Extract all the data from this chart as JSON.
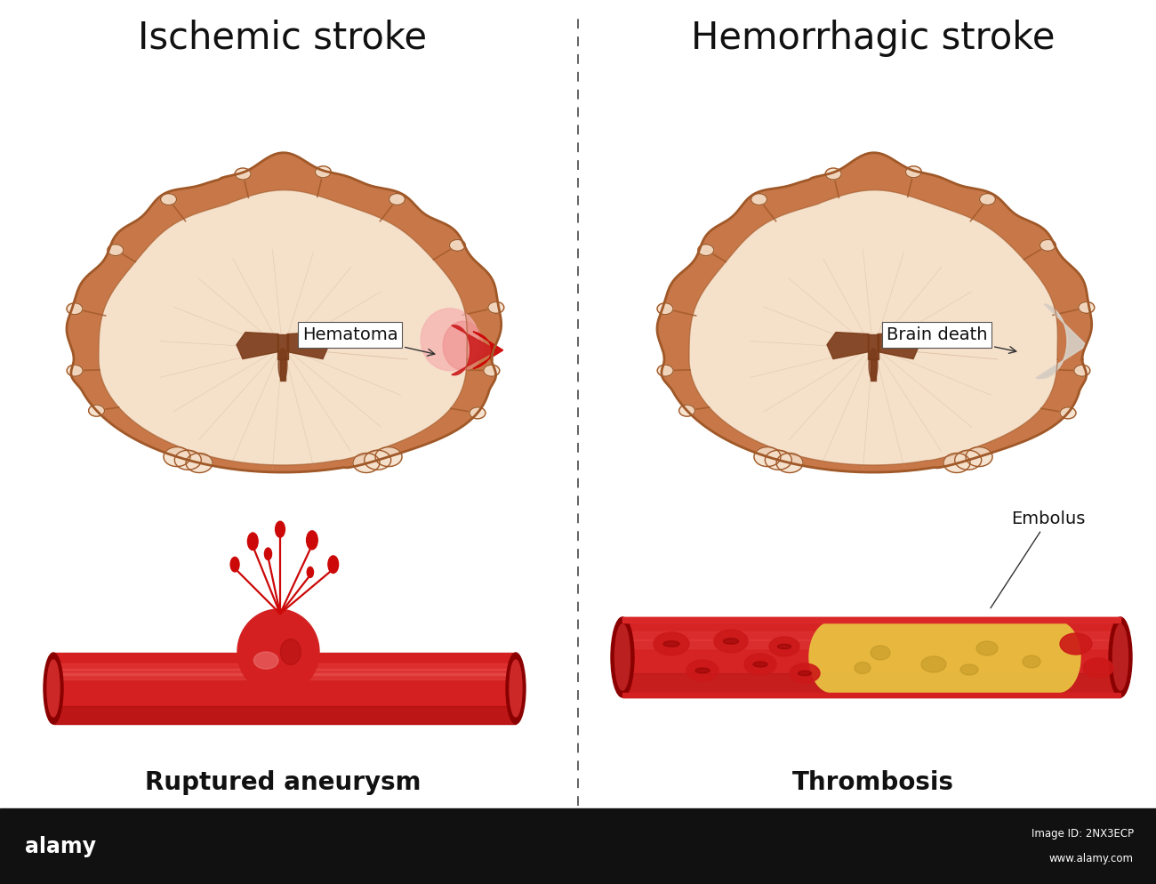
{
  "title_left": "Ischemic stroke",
  "title_right": "Hemorrhagic stroke",
  "label_left": "Ruptured aneurysm",
  "label_right": "Thrombosis",
  "label_hematoma": "Hematoma",
  "label_brain_death": "Brain death",
  "label_embolus": "Embolus",
  "bg_color": "#ffffff",
  "title_fontsize": 30,
  "label_fontsize": 20,
  "annotation_fontsize": 14,
  "brain_outer_color": "#c87848",
  "brain_inner_color": "#f5e0ca",
  "brain_white_matter": "#fdf5ee",
  "brain_ventricle_color": "#7a3a18",
  "hematoma_color": "#cc0808",
  "hematoma_glow": "#f08080",
  "blood_red": "#d42020",
  "blood_dark": "#8b0000",
  "blood_light": "#e85050",
  "blood_highlight": "#ff6060",
  "divider_color": "#555555",
  "brain_death_color": "#c8bdb0",
  "brain_death_light": "#e8e0d8",
  "embolus_color": "#e8c040",
  "embolus_dark": "#b89020",
  "rbc_color": "#cc1818",
  "rbc_dark": "#880000",
  "cortex_line": "#a05828"
}
